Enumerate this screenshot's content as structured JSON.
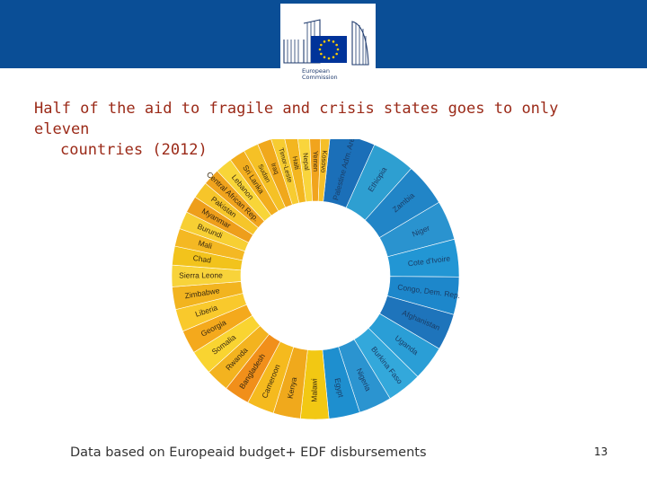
{
  "header": {
    "logo": {
      "lines": [
        "European",
        "Commission"
      ],
      "colors": {
        "flag": "#003399",
        "stars": "#ffcc00",
        "banner": "#0a4e96"
      }
    }
  },
  "slide": {
    "title_line1": "Half of the aid to fragile and crisis states goes to only eleven",
    "title_line2": "countries (2012)",
    "footer": "Data based on Europeaid budget+ EDF disbursements",
    "page_number": "13"
  },
  "chart_data": {
    "type": "pie",
    "variant": "donut",
    "start_angle_deg": 6,
    "categories": [
      "Palestine Adm. Areas",
      "Ethiopia",
      "Zambia",
      "Niger",
      "Cote d'Ivoire",
      "Congo, Dem. Rep.",
      "Afghanistan",
      "Uganda",
      "Burkina Faso",
      "Nigeria",
      "Egypt",
      "Malawi",
      "Kenya",
      "Cameroon",
      "Bangladesh",
      "Rwanda",
      "Somalia",
      "Georgia",
      "Liberia",
      "Zimbabwe",
      "Sierra Leone",
      "Chad",
      "Mali",
      "Burundi",
      "Myanmar",
      "Pakistan",
      "Central African Rep.",
      "Lebanon",
      "Sri Lanka",
      "Sudan",
      "Iraq",
      "Timor-Leste",
      "Haiti",
      "Nepal",
      "Yemen",
      "Kosovo"
    ],
    "values": [
      4.8,
      4.6,
      4.6,
      4.2,
      4.0,
      4.0,
      3.9,
      3.7,
      3.7,
      3.5,
      3.3,
      3.0,
      2.9,
      2.9,
      2.7,
      2.5,
      2.6,
      2.5,
      2.4,
      2.4,
      2.3,
      2.0,
      1.9,
      1.9,
      1.8,
      1.8,
      1.8,
      1.8,
      1.7,
      1.6,
      1.5,
      1.4,
      1.4,
      1.3,
      1.2,
      1.0
    ],
    "colors": [
      "#1b6fb8",
      "#2e9fd1",
      "#2185c7",
      "#2a93cf",
      "#2296d4",
      "#1d87cb",
      "#1e74bb",
      "#2a9ed6",
      "#33a8db",
      "#2b94d0",
      "#1e8fcf",
      "#f2c813",
      "#f0a91c",
      "#f5ba1e",
      "#f18f1a",
      "#f3b31f",
      "#f9d431",
      "#f4a91c",
      "#f9c92c",
      "#f2b41f",
      "#f8d33a",
      "#f2c31c",
      "#f4b823",
      "#f7cf33",
      "#ee9e1b",
      "#f6c52a",
      "#f0a31d",
      "#f8d538",
      "#f2ae1e",
      "#f5c126",
      "#f0a81c",
      "#f7cc31",
      "#f3b620",
      "#f9d53c",
      "#f1a41d",
      "#f5bf28"
    ],
    "legend": "none"
  }
}
